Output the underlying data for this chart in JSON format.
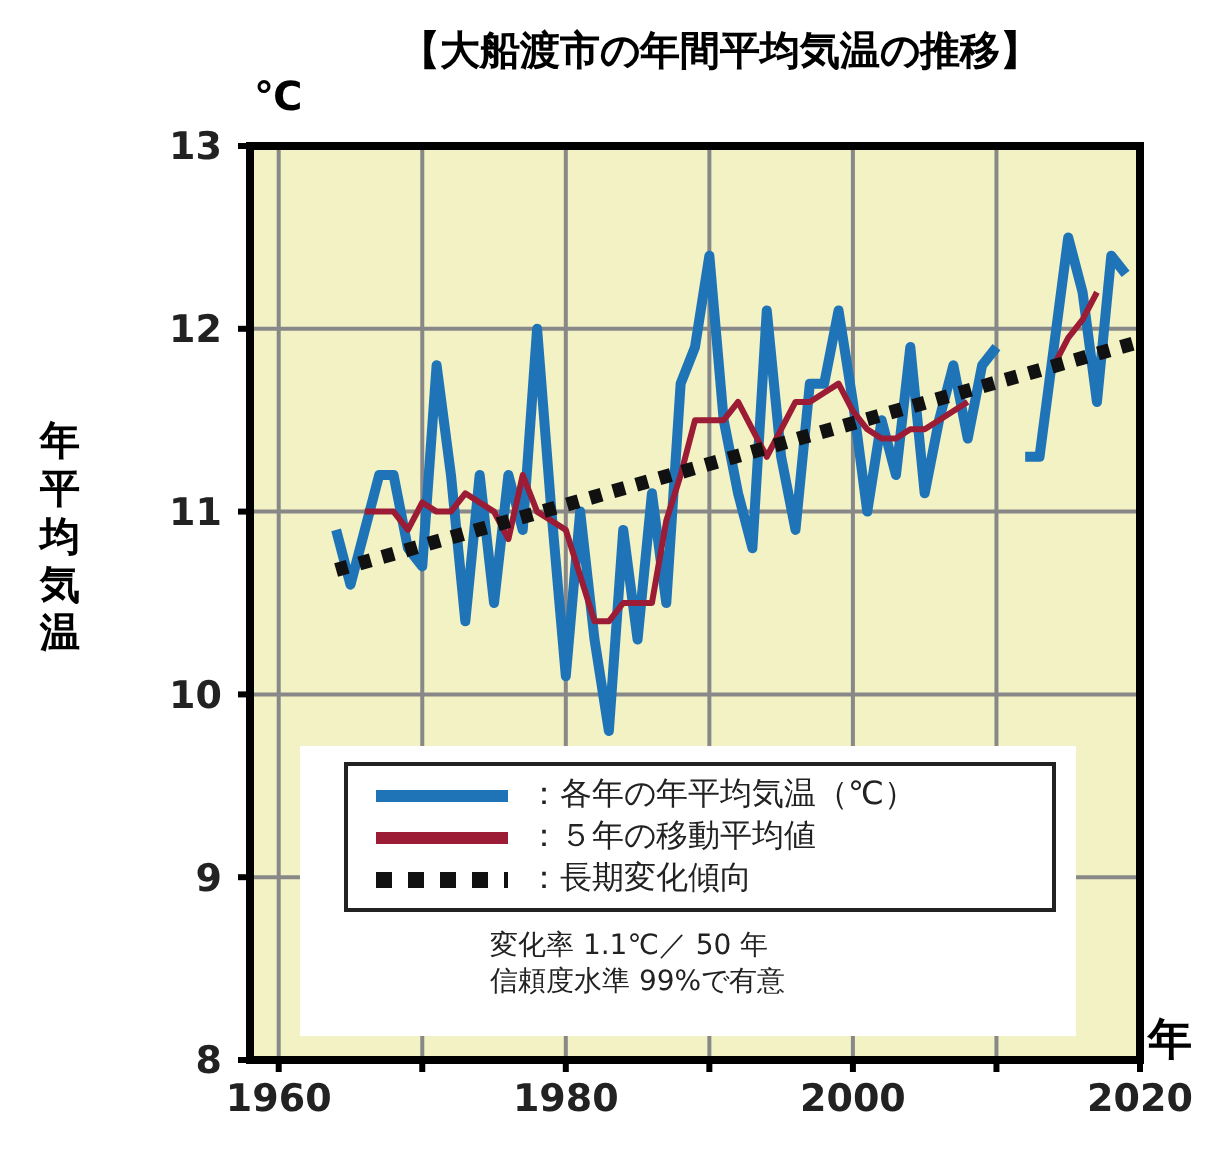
{
  "chart_data": {
    "type": "line",
    "title": "【大船渡市の年間平均気温の推移】",
    "ylabel": "年平均気温",
    "xlabel": "年",
    "annotations": [
      "℃",
      "変化率 1.1℃／ 50 年",
      "信頼度水準 99%で有意"
    ],
    "series": [
      {
        "name": "：各年の年平均気温（℃）",
        "color": "#1f74b8",
        "x": [
          1964,
          1965,
          1966,
          1967,
          1968,
          1969,
          1970,
          1971,
          1972,
          1973,
          1974,
          1975,
          1976,
          1977,
          1978,
          1979,
          1980,
          1981,
          1982,
          1983,
          1984,
          1985,
          1986,
          1987,
          1988,
          1989,
          1990,
          1991,
          1992,
          1993,
          1994,
          1995,
          1996,
          1997,
          1998,
          1999,
          2000,
          2001,
          2002,
          2003,
          2004,
          2005,
          2006,
          2007,
          2008,
          2009,
          2010,
          2011,
          2012,
          2013,
          2014,
          2015,
          2016,
          2017,
          2018,
          2019
        ],
        "values": [
          10.9,
          10.6,
          10.9,
          11.2,
          11.2,
          10.8,
          10.7,
          11.8,
          11.2,
          10.4,
          11.2,
          10.5,
          11.2,
          10.9,
          12.0,
          11.0,
          10.1,
          11.0,
          10.3,
          9.8,
          10.9,
          10.3,
          11.1,
          10.5,
          11.7,
          11.9,
          12.4,
          11.5,
          11.1,
          10.8,
          12.1,
          11.3,
          10.9,
          11.7,
          11.7,
          12.1,
          11.6,
          11.0,
          11.5,
          11.2,
          11.9,
          11.1,
          11.5,
          11.8,
          11.4,
          11.8,
          11.9,
          null,
          11.3,
          11.3,
          11.9,
          12.5,
          12.2,
          11.6,
          12.4,
          12.3
        ]
      },
      {
        "name": "：５年の移動平均値",
        "color": "#9b1c34",
        "x": [
          1966,
          1967,
          1968,
          1969,
          1970,
          1971,
          1972,
          1973,
          1974,
          1975,
          1976,
          1977,
          1978,
          1979,
          1980,
          1981,
          1982,
          1983,
          1984,
          1985,
          1986,
          1987,
          1988,
          1989,
          1990,
          1991,
          1992,
          1993,
          1994,
          1995,
          1996,
          1997,
          1998,
          1999,
          2000,
          2001,
          2002,
          2003,
          2004,
          2005,
          2006,
          2007,
          2008,
          2009,
          2010,
          2011,
          2012,
          2013,
          2014,
          2015,
          2016,
          2017
        ],
        "values": [
          11.0,
          11.0,
          11.0,
          10.9,
          11.05,
          11.0,
          11.0,
          11.1,
          11.05,
          11.0,
          10.85,
          11.2,
          11.0,
          10.95,
          10.9,
          10.65,
          10.4,
          10.4,
          10.5,
          10.5,
          10.5,
          10.95,
          11.2,
          11.5,
          11.5,
          11.5,
          11.6,
          11.45,
          11.3,
          11.45,
          11.6,
          11.6,
          11.65,
          11.7,
          11.55,
          11.45,
          11.4,
          11.4,
          11.45,
          11.45,
          11.5,
          11.55,
          11.6,
          null,
          null,
          null,
          null,
          null,
          11.8,
          11.95,
          12.05,
          12.2
        ]
      },
      {
        "name": "：長期変化傾向",
        "color": "#111111",
        "line_style": "dotted",
        "x": [
          1964,
          2020
        ],
        "values": [
          10.68,
          11.93
        ]
      }
    ],
    "xlim": [
      1958,
      2020
    ],
    "xticks": [
      1960,
      {
        "value": 1970,
        "label": null
      },
      1980,
      {
        "value": 1990,
        "label": null
      },
      2000,
      {
        "value": 2010,
        "label": null
      },
      2020
    ],
    "ylim": [
      8,
      13
    ],
    "yticks": [
      8,
      9,
      10,
      11,
      12,
      13
    ],
    "grid": true,
    "legend": "bottom"
  }
}
